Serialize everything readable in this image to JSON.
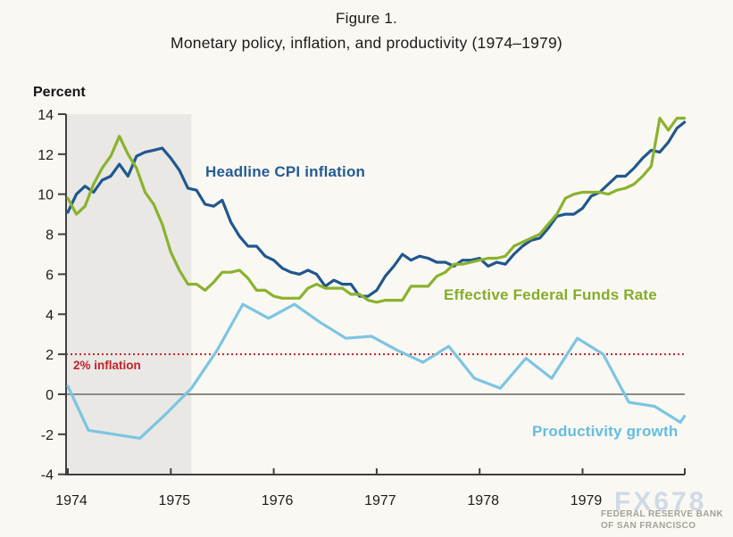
{
  "figure": {
    "title_line1": "Figure 1.",
    "title_line2": "Monetary policy, inflation, and productivity (1974–1979)",
    "axis_unit_label": "Percent"
  },
  "annotations": {
    "cpi_label": "Headline CPI inflation",
    "ffr_label": "Effective Federal Funds Rate",
    "productivity_label": "Productivity growth",
    "inflation_target_label": "2% inflation"
  },
  "watermark": {
    "brand": "FX678",
    "source_line1": "FEDERAL RESERVE BANK",
    "source_line2": "OF SAN FRANCISCO"
  },
  "colors": {
    "background": "#faf8f2",
    "axis": "#3f3f3f",
    "recession_band": "#e9e8e5",
    "cpi_line": "#20578f",
    "ffr_line": "#8ab22e",
    "productivity_line": "#7cc5e2",
    "target_line": "#c42127",
    "zero_line": "#8a8a8a",
    "watermark_brand": "#c7d5e5",
    "watermark_source": "#a5a199",
    "tick_text": "#1d1d1d"
  },
  "chart_data": {
    "type": "line",
    "title": "Figure 1.",
    "subtitle": "Monetary policy, inflation, and productivity (1974–1979)",
    "xlabel": "",
    "ylabel": "Percent",
    "ylim": [
      -4,
      14
    ],
    "ytick_step": 2,
    "xlim_years": [
      1974,
      1980
    ],
    "x_ticks": [
      "1974",
      "1975",
      "1976",
      "1977",
      "1978",
      "1979"
    ],
    "grid": false,
    "legend_position": "inline-labels",
    "recession_shading_years": [
      1974.0,
      1975.2
    ],
    "reference_lines": [
      {
        "value": 2,
        "label": "2% inflation",
        "style": "dotted",
        "color": "#c42127"
      },
      {
        "value": 0,
        "label": "",
        "style": "solid",
        "color": "#8a8a8a"
      }
    ],
    "series": [
      {
        "name": "Headline CPI inflation",
        "color": "#20578f",
        "frequency": "monthly",
        "start": "1974-01",
        "end": "1980-01",
        "values": [
          9.1,
          10.0,
          10.4,
          10.1,
          10.7,
          10.9,
          11.5,
          10.9,
          11.9,
          12.1,
          12.2,
          12.3,
          11.8,
          11.2,
          10.3,
          10.2,
          9.5,
          9.4,
          9.7,
          8.6,
          7.9,
          7.4,
          7.4,
          6.9,
          6.7,
          6.3,
          6.1,
          6.0,
          6.2,
          6.0,
          5.4,
          5.7,
          5.5,
          5.5,
          4.9,
          4.9,
          5.2,
          5.9,
          6.4,
          7.0,
          6.7,
          6.9,
          6.8,
          6.6,
          6.6,
          6.4,
          6.7,
          6.7,
          6.8,
          6.4,
          6.6,
          6.5,
          7.0,
          7.4,
          7.7,
          7.8,
          8.3,
          8.9,
          9.0,
          9.0,
          9.3,
          9.9,
          10.1,
          10.5,
          10.9,
          10.9,
          11.3,
          11.8,
          12.2,
          12.1,
          12.6,
          13.3,
          13.6
        ]
      },
      {
        "name": "Effective Federal Funds Rate",
        "color": "#8ab22e",
        "frequency": "monthly",
        "start": "1974-01",
        "end": "1980-01",
        "values": [
          9.8,
          9.0,
          9.4,
          10.5,
          11.3,
          11.9,
          12.9,
          12.0,
          11.3,
          10.1,
          9.5,
          8.5,
          7.1,
          6.2,
          5.5,
          5.5,
          5.2,
          5.6,
          6.1,
          6.1,
          6.2,
          5.8,
          5.2,
          5.2,
          4.9,
          4.8,
          4.8,
          4.8,
          5.3,
          5.5,
          5.3,
          5.3,
          5.3,
          5.0,
          5.0,
          4.7,
          4.6,
          4.7,
          4.7,
          4.7,
          5.4,
          5.4,
          5.4,
          5.9,
          6.1,
          6.5,
          6.5,
          6.6,
          6.7,
          6.8,
          6.8,
          6.9,
          7.4,
          7.6,
          7.8,
          8.0,
          8.5,
          9.0,
          9.8,
          10.0,
          10.1,
          10.1,
          10.1,
          10.0,
          10.2,
          10.3,
          10.5,
          10.9,
          11.4,
          13.8,
          13.2,
          13.8,
          13.8
        ]
      },
      {
        "name": "Productivity growth",
        "color": "#7cc5e2",
        "frequency": "quarterly",
        "quarters": [
          "1973Q4",
          "1974Q1",
          "1974Q2",
          "1974Q3",
          "1974Q4",
          "1975Q1",
          "1975Q2",
          "1975Q3",
          "1975Q4",
          "1976Q1",
          "1976Q2",
          "1976Q3",
          "1976Q4",
          "1977Q1",
          "1977Q2",
          "1977Q3",
          "1977Q4",
          "1978Q1",
          "1978Q2",
          "1978Q3",
          "1978Q4",
          "1979Q1",
          "1979Q2",
          "1979Q3",
          "1979Q4",
          "1980Q1"
        ],
        "x_years": [
          1974.0,
          1974.2,
          1974.45,
          1974.7,
          1974.95,
          1975.2,
          1975.45,
          1975.7,
          1975.95,
          1976.2,
          1976.45,
          1976.7,
          1976.95,
          1977.2,
          1977.45,
          1977.7,
          1977.95,
          1978.2,
          1978.45,
          1978.7,
          1978.95,
          1979.2,
          1979.45,
          1979.7,
          1979.95,
          1979.99
        ],
        "values": [
          0.4,
          -1.8,
          -2.0,
          -2.2,
          -1.0,
          0.3,
          2.2,
          4.5,
          3.8,
          4.5,
          3.6,
          2.8,
          2.9,
          2.2,
          1.6,
          2.4,
          0.8,
          0.3,
          1.8,
          0.8,
          2.8,
          2.0,
          -0.4,
          -0.6,
          -1.4,
          -1.1
        ]
      }
    ]
  }
}
